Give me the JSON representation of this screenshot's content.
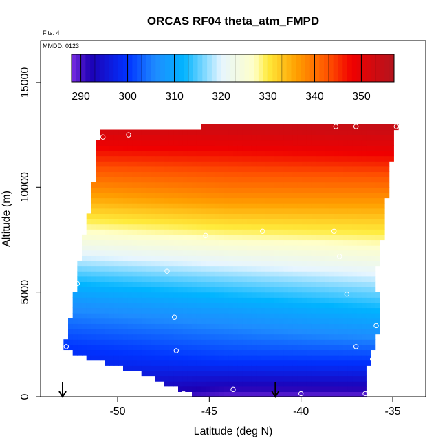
{
  "chart_data": {
    "type": "heatmap",
    "title": "ORCAS RF04 theta_atm_FMPD",
    "annotations": {
      "flts": "Flts: 4",
      "mmdd": "MMDD: 0123"
    },
    "xlabel": "Latitude (deg N)",
    "ylabel": "Altitude (m)",
    "xlim": [
      -54.2,
      -33.2
    ],
    "ylim": [
      0,
      17000
    ],
    "x_ticks": [
      -50,
      -45,
      -40,
      -35
    ],
    "x_tick_labels": [
      "-50",
      "-45",
      "-40",
      "-35"
    ],
    "y_ticks": [
      0,
      5000,
      10000,
      15000
    ],
    "y_tick_labels": [
      "0",
      "5000",
      "10000",
      "15000"
    ],
    "colorbar": {
      "min": 288,
      "max": 357,
      "ticks": [
        290,
        300,
        310,
        320,
        330,
        340,
        350
      ],
      "tick_labels": [
        "290",
        "300",
        "310",
        "320",
        "330",
        "340",
        "350"
      ],
      "stops": [
        {
          "v": 288,
          "c": "#7b2ee0"
        },
        {
          "v": 292,
          "c": "#1e00b4"
        },
        {
          "v": 300,
          "c": "#0032ff"
        },
        {
          "v": 306,
          "c": "#1e8cff"
        },
        {
          "v": 312,
          "c": "#00b4ff"
        },
        {
          "v": 320,
          "c": "#e6f5ff"
        },
        {
          "v": 327,
          "c": "#ffffc8"
        },
        {
          "v": 330,
          "c": "#ffeb3c"
        },
        {
          "v": 336,
          "c": "#ffa000"
        },
        {
          "v": 343,
          "c": "#ff5000"
        },
        {
          "v": 348,
          "c": "#f00000"
        },
        {
          "v": 357,
          "c": "#b4141e"
        }
      ]
    },
    "domain": {
      "left_edge": [
        {
          "alt": 2200,
          "lat": -53.0
        },
        {
          "alt": 4000,
          "lat": -52.5
        },
        {
          "alt": 5800,
          "lat": -52.2
        },
        {
          "alt": 7600,
          "lat": -51.9
        },
        {
          "alt": 9000,
          "lat": -51.5
        },
        {
          "alt": 11300,
          "lat": -51.2
        },
        {
          "alt": 12700,
          "lat": -51.0
        }
      ],
      "right_edge": [
        {
          "alt": 0,
          "lat": -36.5
        },
        {
          "alt": 1600,
          "lat": -36.3
        },
        {
          "alt": 3500,
          "lat": -35.7
        },
        {
          "alt": 6000,
          "lat": -35.9
        },
        {
          "alt": 8000,
          "lat": -35.5
        },
        {
          "alt": 10500,
          "lat": -35.2
        },
        {
          "alt": 13000,
          "lat": -34.8
        }
      ],
      "bottom_edge": [
        {
          "lat": -52.8,
          "alt": 2200
        },
        {
          "lat": -51.0,
          "alt": 1700
        },
        {
          "lat": -49.0,
          "alt": 1200
        },
        {
          "lat": -47.0,
          "alt": 500
        },
        {
          "lat": -45.5,
          "alt": 0
        },
        {
          "lat": -36.5,
          "alt": 0
        }
      ],
      "top_edge": [
        {
          "lat": -51.0,
          "alt": 12700
        },
        {
          "lat": -45.5,
          "alt": 12700
        },
        {
          "lat": -45.5,
          "alt": 13000
        },
        {
          "lat": -34.8,
          "alt": 13000
        }
      ]
    },
    "theta_isolines": [
      {
        "lat": -53.0,
        "theta": [
          [
            500,
            295
          ],
          [
            2400,
            300
          ],
          [
            4500,
            307
          ],
          [
            6000,
            315
          ],
          [
            7800,
            326
          ],
          [
            9500,
            335
          ],
          [
            11000,
            343
          ],
          [
            12700,
            352
          ]
        ]
      },
      {
        "lat": -44.0,
        "theta": [
          [
            0,
            289
          ],
          [
            1700,
            300
          ],
          [
            4000,
            308
          ],
          [
            5800,
            317
          ],
          [
            7700,
            328
          ],
          [
            9600,
            338
          ],
          [
            11400,
            346
          ],
          [
            13000,
            354
          ]
        ]
      },
      {
        "lat": -35.0,
        "theta": [
          [
            0,
            289
          ],
          [
            1300,
            298
          ],
          [
            3000,
            307
          ],
          [
            5200,
            317
          ],
          [
            7000,
            326
          ],
          [
            9400,
            337
          ],
          [
            11200,
            346
          ],
          [
            13000,
            355
          ]
        ]
      }
    ],
    "flight_points": [
      {
        "lat": -52.8,
        "alt": 2400
      },
      {
        "lat": -52.2,
        "alt": 5400
      },
      {
        "lat": -50.8,
        "alt": 12400
      },
      {
        "lat": -49.4,
        "alt": 12500
      },
      {
        "lat": -47.3,
        "alt": 6000
      },
      {
        "lat": -46.9,
        "alt": 3800
      },
      {
        "lat": -46.8,
        "alt": 2200
      },
      {
        "lat": -46.4,
        "alt": 150
      },
      {
        "lat": -45.2,
        "alt": 7700
      },
      {
        "lat": -43.7,
        "alt": 350
      },
      {
        "lat": -42.1,
        "alt": 7900
      },
      {
        "lat": -40.0,
        "alt": 150
      },
      {
        "lat": -38.2,
        "alt": 7900
      },
      {
        "lat": -38.1,
        "alt": 12900
      },
      {
        "lat": -37.9,
        "alt": 6700
      },
      {
        "lat": -37.5,
        "alt": 4900
      },
      {
        "lat": -37.0,
        "alt": 12900
      },
      {
        "lat": -37.0,
        "alt": 2400
      },
      {
        "lat": -36.5,
        "alt": 150
      },
      {
        "lat": -36.1,
        "alt": 1800
      },
      {
        "lat": -35.9,
        "alt": 3400
      },
      {
        "lat": -34.8,
        "alt": 12900
      }
    ],
    "arrows": [
      {
        "lat": -53.0
      },
      {
        "lat": -41.4
      }
    ]
  }
}
